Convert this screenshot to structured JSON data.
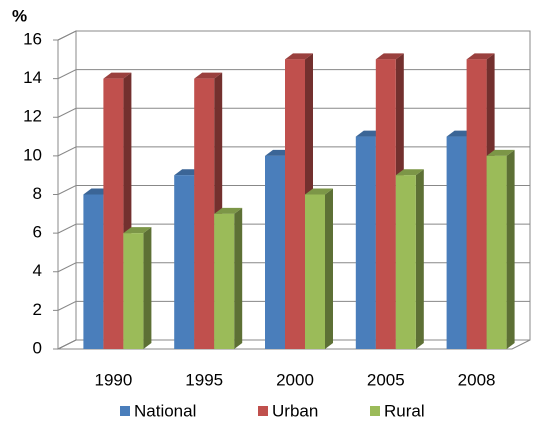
{
  "chart_data": {
    "type": "bar3d",
    "y_label": "%",
    "categories": [
      "1990",
      "1995",
      "2000",
      "2005",
      "2008"
    ],
    "series": [
      {
        "name": "National",
        "color": "#4a7ebb",
        "values": [
          8,
          9,
          10,
          11,
          11
        ]
      },
      {
        "name": "Urban",
        "color": "#c0504d",
        "values": [
          14,
          14,
          15,
          15,
          15
        ]
      },
      {
        "name": "Rural",
        "color": "#9bbb59",
        "values": [
          6,
          7,
          8,
          9,
          10
        ]
      }
    ],
    "ylim": [
      0,
      16
    ],
    "yticks": [
      0,
      2,
      4,
      6,
      8,
      10,
      12,
      14,
      16
    ],
    "grid": true,
    "legend": "bottom"
  }
}
